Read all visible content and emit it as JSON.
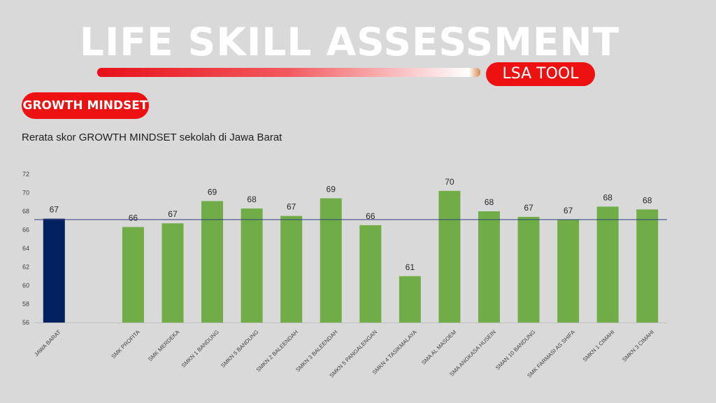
{
  "header": {
    "title": "LIFE SKILL ASSESSMENT",
    "tool_label": "LSA TOOL",
    "section_label": "GROWTH MINDSET"
  },
  "colors": {
    "accent": "#ee1111",
    "province_bar": "#002060",
    "school_bar": "#70ad47",
    "average_line": "#2f3f7f"
  },
  "chart_data": {
    "type": "bar",
    "title": "Rerata skor GROWTH MINDSET sekolah di Jawa Barat",
    "categories": [
      "JAWA BARAT",
      "",
      "SMK PROFITA",
      "SMK MERDEKA",
      "SMKN 1 BANDUNG",
      "SMKN 5 BANDUNG",
      "SMKN 2 BALEENDAH",
      "SMKN 3 BALEENDAH",
      "SMKN 5 PANGALENGAN",
      "SMKN 4 TASIKMALAYA",
      "SMA AL MASOEM",
      "SMA ANGKASA HUSEIN",
      "SMAN 10 BANDUNG",
      "SMK FARMASI AS SHIFA",
      "SMKN 1 CIMAHI",
      "SMKN 3 CIMAHI"
    ],
    "values": [
      67.2,
      null,
      66.3,
      66.7,
      69.1,
      68.3,
      67.5,
      69.4,
      66.5,
      61.0,
      70.2,
      68.0,
      67.4,
      67.1,
      68.5,
      68.2
    ],
    "data_labels": [
      "67",
      "",
      "66",
      "67",
      "69",
      "68",
      "67",
      "69",
      "66",
      "61",
      "70",
      "68",
      "67",
      "67",
      "68",
      "68"
    ],
    "highlight_index": 0,
    "reference_line": 67.1,
    "ylim": [
      56,
      72
    ],
    "yticks": [
      56,
      58,
      60,
      62,
      64,
      66,
      68,
      70,
      72
    ],
    "xlabel": "",
    "ylabel": "",
    "grid": false
  }
}
